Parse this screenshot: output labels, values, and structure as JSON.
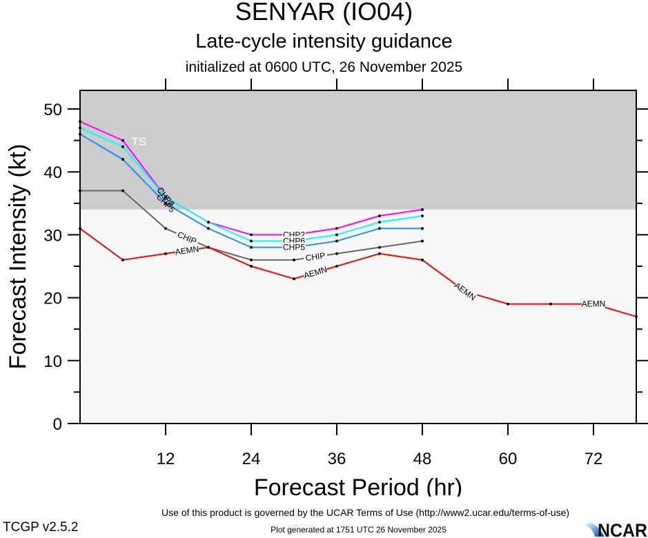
{
  "header": {
    "title": "SENYAR (IO04)",
    "subtitle": "Late-cycle intensity guidance",
    "init": "initialized at 0600 UTC, 26 November 2025"
  },
  "footer": {
    "terms": "Use of this product is governed by the UCAR Terms of Use (http://www2.ucar.edu/terms-of-use)",
    "version": "TCGP v2.5.2",
    "generated": "Plot generated at 1751 UTC   26 November 2025",
    "logo_text": "NCAR"
  },
  "chart_data": {
    "type": "line",
    "title": "SENYAR (IO04)",
    "subtitle": "Late-cycle intensity guidance",
    "xlabel": "Forecast Period (hr)",
    "ylabel": "Forecast Intensity (kt)",
    "xlim": [
      0,
      78
    ],
    "ylim": [
      0,
      53
    ],
    "xticks": [
      12,
      24,
      36,
      48,
      60,
      72
    ],
    "yticks": [
      0,
      10,
      20,
      30,
      40,
      50
    ],
    "yminor_step": 5,
    "grid": false,
    "shaded_regions": [
      {
        "name": "TS",
        "label": "TS",
        "from": 34,
        "to": 53,
        "color": "#cccccc"
      },
      {
        "name": "below-TS",
        "label": "",
        "from": 0,
        "to": 34,
        "color": "#f8f8f8"
      }
    ],
    "series": [
      {
        "name": "CHP2",
        "color": "#ff00ff",
        "x": [
          0,
          6,
          12,
          18,
          24,
          30,
          36,
          42,
          48
        ],
        "values": [
          48,
          45,
          36,
          32,
          30,
          30,
          31,
          33,
          34
        ],
        "label_at": [
          12,
          30
        ]
      },
      {
        "name": "CHP6",
        "color": "#00ffff",
        "x": [
          0,
          6,
          12,
          18,
          24,
          30,
          36,
          42,
          48
        ],
        "values": [
          47,
          44,
          36,
          32,
          29,
          29,
          30,
          32,
          33
        ],
        "label_at": [
          12,
          30
        ]
      },
      {
        "name": "CHP5",
        "color": "#1e90ff",
        "x": [
          0,
          6,
          12,
          18,
          24,
          30,
          36,
          42,
          48
        ],
        "values": [
          46,
          42,
          35,
          31,
          28,
          28,
          29,
          31,
          31
        ],
        "label_at": [
          12,
          30
        ]
      },
      {
        "name": "CHIP",
        "color": "#666666",
        "x": [
          0,
          6,
          12,
          18,
          24,
          30,
          36,
          42,
          48
        ],
        "values": [
          37,
          37,
          31,
          28,
          26,
          26,
          27,
          28,
          29
        ],
        "label_at": [
          15,
          33
        ]
      },
      {
        "name": "AEMN",
        "color": "#ff0000",
        "x": [
          0,
          6,
          12,
          18,
          24,
          30,
          36,
          42,
          48,
          54,
          60,
          66,
          72,
          78
        ],
        "values": [
          31,
          26,
          27,
          28,
          25,
          23,
          25,
          27,
          26,
          21,
          19,
          19,
          19,
          17
        ],
        "label_at": [
          15,
          33,
          54,
          72
        ]
      }
    ]
  }
}
